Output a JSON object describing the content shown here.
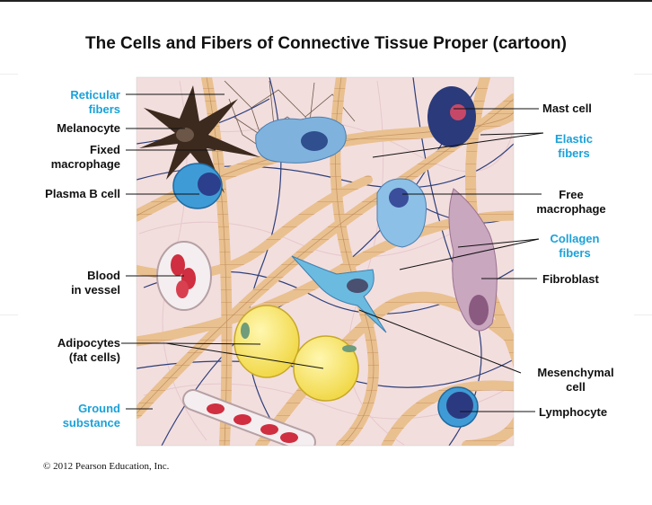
{
  "title": "The Cells and Fibers of Connective Tissue Proper (cartoon)",
  "left_labels": [
    {
      "lines": [
        "Reticular",
        "fibers"
      ],
      "color": "#1ba1d8"
    },
    {
      "lines": [
        "Melanocyte"
      ],
      "color": "#111111"
    },
    {
      "lines": [
        "Fixed",
        "macrophage"
      ],
      "color": "#111111"
    },
    {
      "lines": [
        "Plasma B cell"
      ],
      "color": "#111111"
    },
    {
      "lines": [
        "Blood",
        "in vessel"
      ],
      "color": "#111111"
    },
    {
      "lines": [
        "Adipocytes",
        "(fat cells)"
      ],
      "color": "#111111"
    },
    {
      "lines": [
        "Ground",
        "substance"
      ],
      "color": "#1ba1d8"
    }
  ],
  "right_labels": [
    {
      "lines": [
        "Mast cell"
      ],
      "color": "#111111"
    },
    {
      "lines": [
        "Elastic",
        "fibers"
      ],
      "color": "#1ba1d8"
    },
    {
      "lines": [
        "Free",
        "macrophage"
      ],
      "color": "#111111"
    },
    {
      "lines": [
        "Collagen",
        "fibers"
      ],
      "color": "#1ba1d8"
    },
    {
      "lines": [
        "Fibroblast"
      ],
      "color": "#111111"
    },
    {
      "lines": [
        "Mesenchymal",
        "cell"
      ],
      "color": "#111111"
    },
    {
      "lines": [
        "Lymphocyte"
      ],
      "color": "#111111"
    }
  ],
  "copyright": "© 2012 Pearson Education, Inc.",
  "colors": {
    "label_blue": "#1ba1d8",
    "ground_substance": "#f3dede",
    "collagen": "#e9c08f",
    "elastic": "#2c3f7a",
    "adipocyte": "#f5e25a"
  }
}
